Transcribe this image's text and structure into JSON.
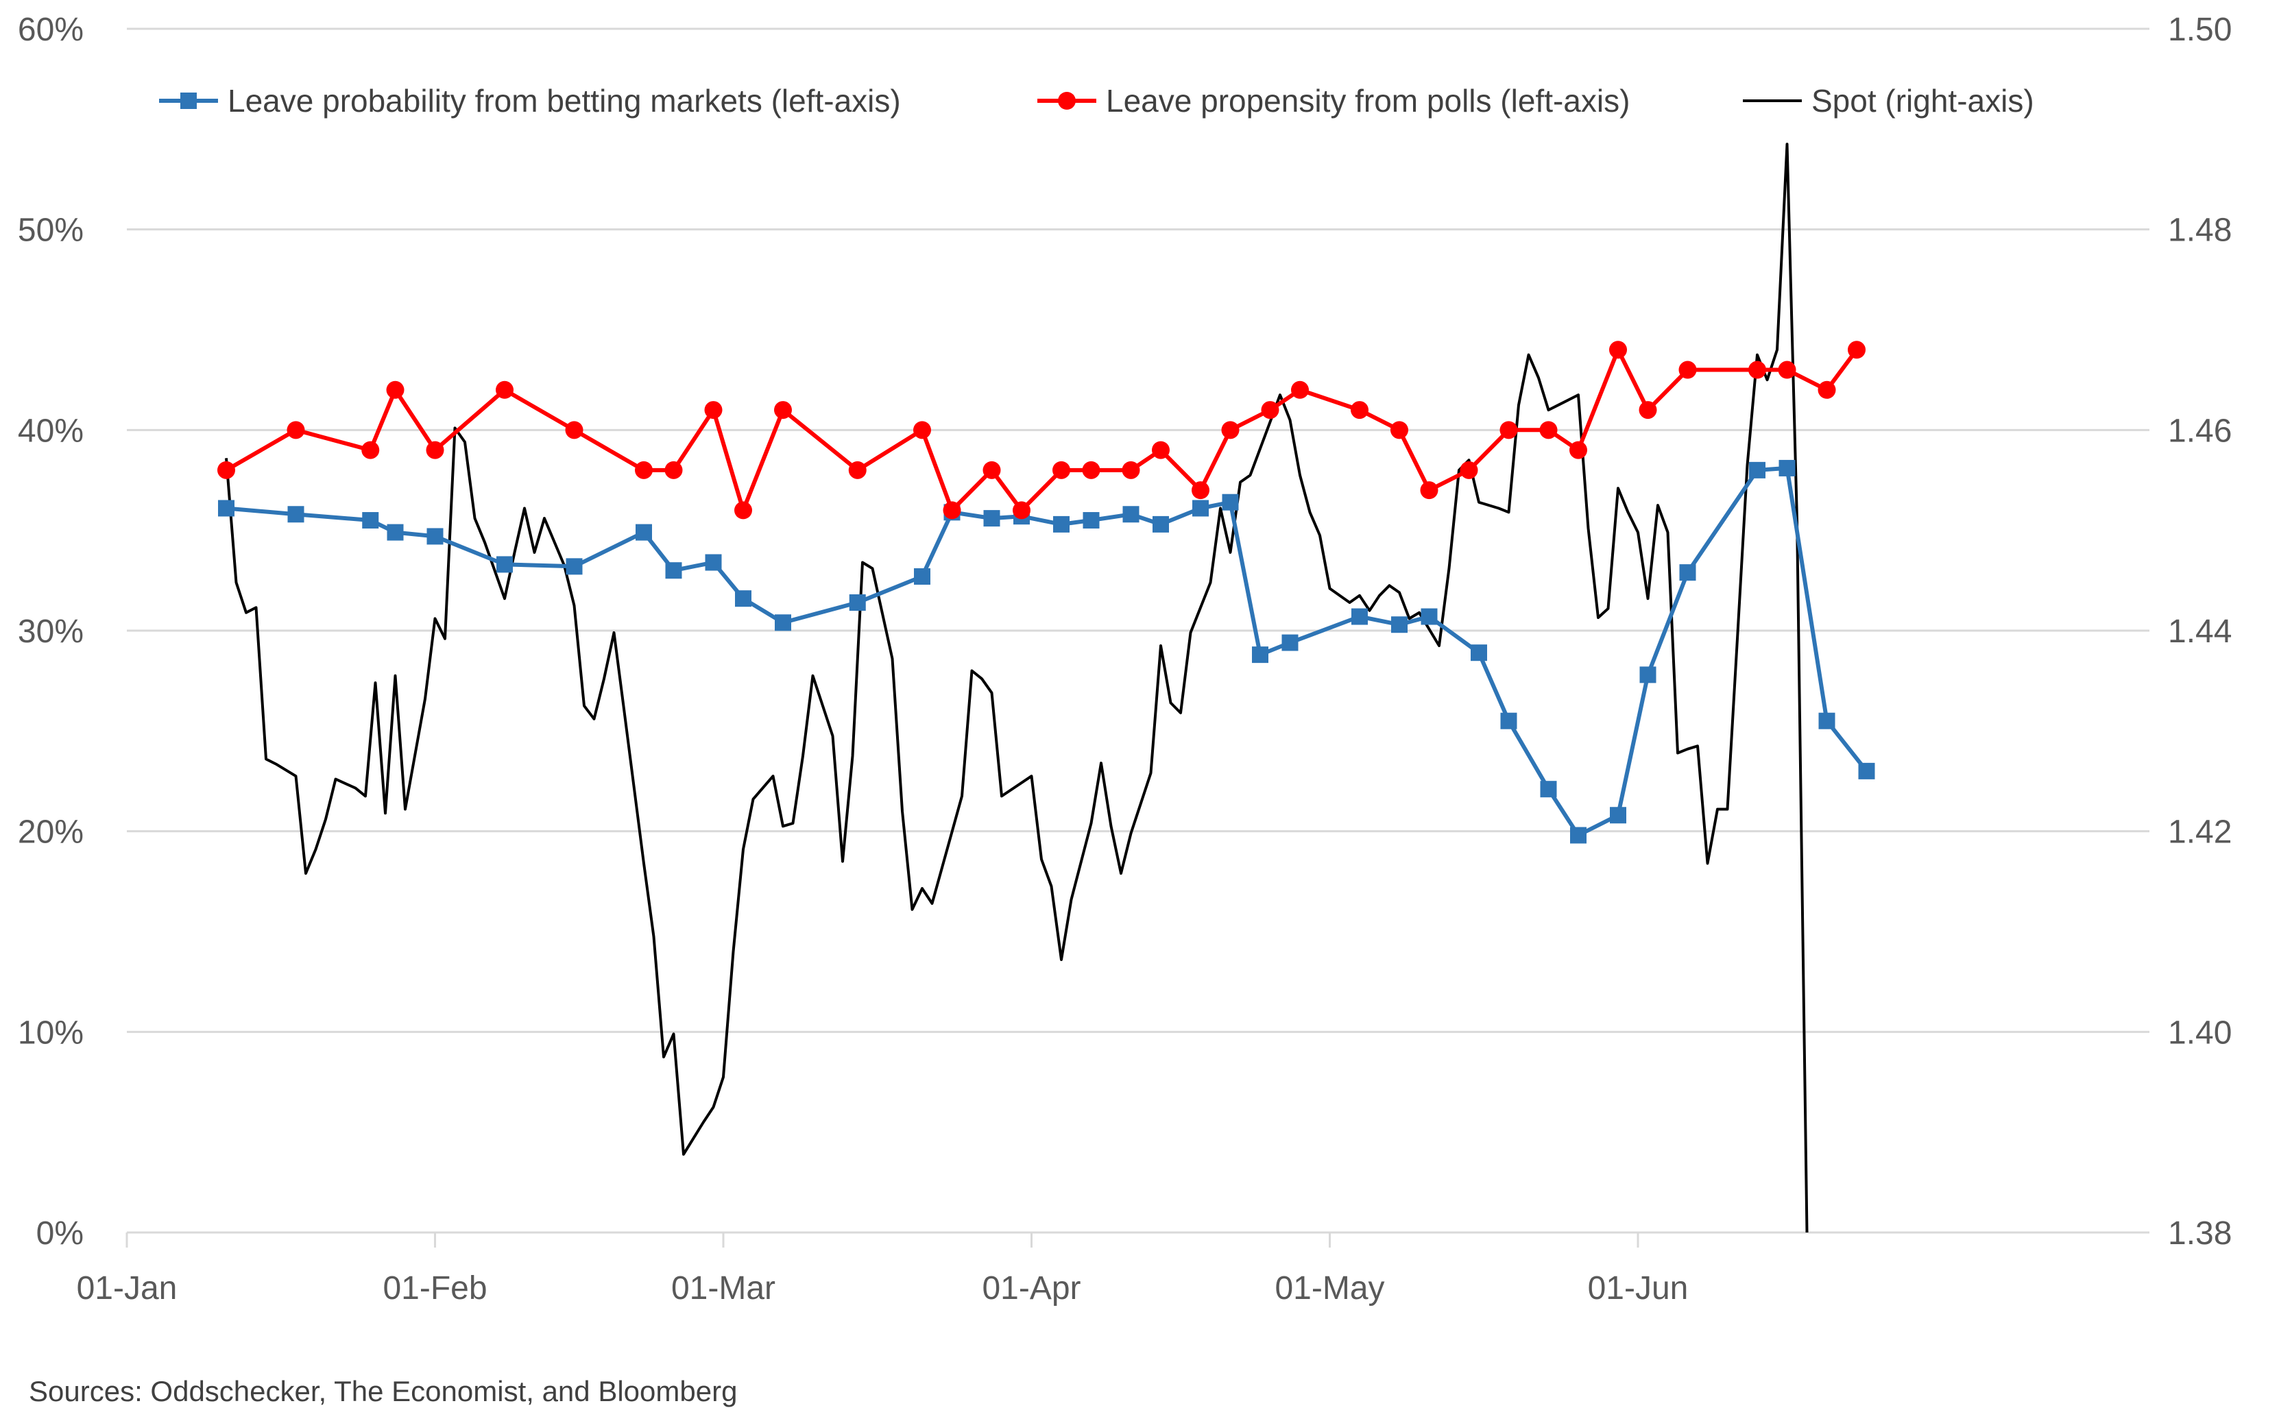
{
  "chart_data": {
    "type": "line",
    "title": "",
    "x_start": "2016-01-01",
    "x_end": "2016-06-24",
    "x_ticks": [
      {
        "day": 0,
        "label": "01-Jan"
      },
      {
        "day": 31,
        "label": "01-Feb"
      },
      {
        "day": 60,
        "label": "01-Mar"
      },
      {
        "day": 91,
        "label": "01-Apr"
      },
      {
        "day": 121,
        "label": "01-May"
      },
      {
        "day": 152,
        "label": "01-Jun"
      }
    ],
    "y_left": {
      "min": 0,
      "max": 60,
      "ticks": [
        "0%",
        "10%",
        "20%",
        "30%",
        "40%",
        "50%",
        "60%"
      ]
    },
    "y_right": {
      "min": 1.38,
      "max": 1.5,
      "ticks": [
        "1.38",
        "1.40",
        "1.42",
        "1.44",
        "1.46",
        "1.48",
        "1.50"
      ]
    },
    "legend_position": "top",
    "series": [
      {
        "name": "Leave probability from betting markets (left-axis)",
        "axis": "left",
        "color": "#2e75b6",
        "marker": "square",
        "points": [
          [
            10,
            36.1
          ],
          [
            17,
            35.8
          ],
          [
            24.5,
            35.5
          ],
          [
            27,
            34.9
          ],
          [
            31,
            34.7
          ],
          [
            38,
            33.3
          ],
          [
            45,
            33.2
          ],
          [
            52,
            34.9
          ],
          [
            55,
            33.0
          ],
          [
            59,
            33.4
          ],
          [
            62,
            31.6
          ],
          [
            66,
            30.4
          ],
          [
            73.5,
            31.4
          ],
          [
            80,
            32.7
          ],
          [
            83,
            35.9
          ],
          [
            87,
            35.6
          ],
          [
            90,
            35.7
          ],
          [
            94,
            35.3
          ],
          [
            97,
            35.5
          ],
          [
            101,
            35.8
          ],
          [
            104,
            35.3
          ],
          [
            108,
            36.1
          ],
          [
            111,
            36.4
          ],
          [
            114,
            28.8
          ],
          [
            117,
            29.4
          ],
          [
            124,
            30.7
          ],
          [
            128,
            30.3
          ],
          [
            131,
            30.7
          ],
          [
            136,
            28.9
          ],
          [
            139,
            25.5
          ],
          [
            143,
            22.1
          ],
          [
            146,
            19.8
          ],
          [
            150,
            20.8
          ],
          [
            153,
            27.8
          ],
          [
            157,
            32.9
          ],
          [
            164,
            38.0
          ],
          [
            167,
            38.1
          ],
          [
            171,
            25.5
          ],
          [
            175,
            23.0
          ]
        ]
      },
      {
        "name": "Leave propensity from polls (left-axis)",
        "axis": "left",
        "color": "#ff0000",
        "marker": "circle",
        "points": [
          [
            10,
            38
          ],
          [
            17,
            40
          ],
          [
            24.5,
            39
          ],
          [
            27,
            42
          ],
          [
            31,
            39
          ],
          [
            38,
            42
          ],
          [
            45,
            40
          ],
          [
            52,
            38
          ],
          [
            55,
            38
          ],
          [
            59,
            41
          ],
          [
            62,
            36
          ],
          [
            66,
            41
          ],
          [
            73.5,
            38
          ],
          [
            80,
            40
          ],
          [
            83,
            36
          ],
          [
            87,
            38
          ],
          [
            90,
            36
          ],
          [
            94,
            38
          ],
          [
            97,
            38
          ],
          [
            101,
            38
          ],
          [
            104,
            39
          ],
          [
            108,
            37
          ],
          [
            111,
            40
          ],
          [
            115,
            41
          ],
          [
            118,
            42
          ],
          [
            124,
            41
          ],
          [
            128,
            40
          ],
          [
            131,
            37
          ],
          [
            135,
            38
          ],
          [
            139,
            40
          ],
          [
            143,
            40
          ],
          [
            146,
            39
          ],
          [
            150,
            44
          ],
          [
            153,
            41
          ],
          [
            157,
            43
          ],
          [
            164,
            43
          ],
          [
            167,
            43
          ],
          [
            171,
            42
          ],
          [
            174,
            44
          ]
        ]
      },
      {
        "name": "Spot (right-axis)",
        "axis": "right",
        "color": "#000000",
        "marker": "none",
        "points": [
          [
            10,
            1.4572
          ],
          [
            11,
            1.4448
          ],
          [
            12,
            1.4418
          ],
          [
            13,
            1.4423
          ],
          [
            14,
            1.4272
          ],
          [
            15,
            1.4267
          ],
          [
            17,
            1.4255
          ],
          [
            18,
            1.4158
          ],
          [
            19,
            1.4182
          ],
          [
            20,
            1.4212
          ],
          [
            21,
            1.4252
          ],
          [
            23,
            1.4243
          ],
          [
            24,
            1.4235
          ],
          [
            25,
            1.4348
          ],
          [
            26,
            1.4218
          ],
          [
            27,
            1.4355
          ],
          [
            28,
            1.4222
          ],
          [
            30,
            1.4332
          ],
          [
            31,
            1.4412
          ],
          [
            32,
            1.4392
          ],
          [
            33,
            1.4602
          ],
          [
            34,
            1.4588
          ],
          [
            35,
            1.4512
          ],
          [
            36,
            1.4488
          ],
          [
            38,
            1.4432
          ],
          [
            39,
            1.4478
          ],
          [
            40,
            1.4522
          ],
          [
            41,
            1.4478
          ],
          [
            42,
            1.4512
          ],
          [
            44,
            1.4465
          ],
          [
            45,
            1.4425
          ],
          [
            46,
            1.4325
          ],
          [
            47,
            1.4312
          ],
          [
            48,
            1.4352
          ],
          [
            49,
            1.4398
          ],
          [
            50,
            1.4322
          ],
          [
            52,
            1.4168
          ],
          [
            53,
            1.4095
          ],
          [
            54,
            1.3975
          ],
          [
            55,
            1.3998
          ],
          [
            56,
            1.3878
          ],
          [
            58,
            1.391
          ],
          [
            59,
            1.3925
          ],
          [
            60,
            1.3955
          ],
          [
            61,
            1.408
          ],
          [
            62,
            1.4182
          ],
          [
            63,
            1.4232
          ],
          [
            65,
            1.4255
          ],
          [
            66,
            1.4205
          ],
          [
            67,
            1.4208
          ],
          [
            68,
            1.4275
          ],
          [
            69,
            1.4355
          ],
          [
            71,
            1.4295
          ],
          [
            72,
            1.417
          ],
          [
            73,
            1.4275
          ],
          [
            74,
            1.4468
          ],
          [
            75,
            1.4462
          ],
          [
            77,
            1.4372
          ],
          [
            78,
            1.422
          ],
          [
            79,
            1.4122
          ],
          [
            80,
            1.4143
          ],
          [
            81,
            1.4128
          ],
          [
            84,
            1.4235
          ],
          [
            85,
            1.436
          ],
          [
            86,
            1.4352
          ],
          [
            87,
            1.4338
          ],
          [
            88,
            1.4235
          ],
          [
            91,
            1.4255
          ],
          [
            92,
            1.4172
          ],
          [
            93,
            1.4145
          ],
          [
            94,
            1.4072
          ],
          [
            95,
            1.4132
          ],
          [
            97,
            1.4208
          ],
          [
            98,
            1.4268
          ],
          [
            99,
            1.4205
          ],
          [
            100,
            1.4158
          ],
          [
            101,
            1.4198
          ],
          [
            103,
            1.4258
          ],
          [
            104,
            1.4385
          ],
          [
            105,
            1.4328
          ],
          [
            106,
            1.4318
          ],
          [
            107,
            1.4398
          ],
          [
            109,
            1.4448
          ],
          [
            110,
            1.4522
          ],
          [
            111,
            1.4478
          ],
          [
            112,
            1.4548
          ],
          [
            113,
            1.4555
          ],
          [
            115,
            1.4608
          ],
          [
            116,
            1.4635
          ],
          [
            117,
            1.461
          ],
          [
            118,
            1.4555
          ],
          [
            119,
            1.4518
          ],
          [
            120,
            1.4495
          ],
          [
            121,
            1.4442
          ],
          [
            123,
            1.4428
          ],
          [
            124,
            1.4435
          ],
          [
            125,
            1.442
          ],
          [
            126,
            1.4435
          ],
          [
            127,
            1.4445
          ],
          [
            128,
            1.4438
          ],
          [
            129,
            1.4412
          ],
          [
            130,
            1.4418
          ],
          [
            132,
            1.4385
          ],
          [
            133,
            1.4462
          ],
          [
            134,
            1.456
          ],
          [
            135,
            1.457
          ],
          [
            136,
            1.4528
          ],
          [
            138,
            1.4522
          ],
          [
            139,
            1.4518
          ],
          [
            140,
            1.4625
          ],
          [
            141,
            1.4675
          ],
          [
            142,
            1.4652
          ],
          [
            143,
            1.462
          ],
          [
            144,
            1.4625
          ],
          [
            146,
            1.4635
          ],
          [
            147,
            1.4502
          ],
          [
            148,
            1.4413
          ],
          [
            149,
            1.4422
          ],
          [
            150,
            1.4542
          ],
          [
            151,
            1.4518
          ],
          [
            152,
            1.4498
          ],
          [
            153,
            1.4432
          ],
          [
            154,
            1.4525
          ],
          [
            155,
            1.4498
          ],
          [
            156,
            1.4278
          ],
          [
            157,
            1.4282
          ],
          [
            158,
            1.4285
          ],
          [
            159,
            1.4168
          ],
          [
            160,
            1.4222
          ],
          [
            161,
            1.4222
          ],
          [
            162,
            1.4392
          ],
          [
            163,
            1.4565
          ],
          [
            164,
            1.4675
          ],
          [
            165,
            1.465
          ],
          [
            166,
            1.468
          ],
          [
            167,
            1.4885
          ],
          [
            168,
            1.451
          ],
          [
            169,
            1.38
          ]
        ]
      }
    ]
  },
  "legend": [
    {
      "label": "Leave probability from betting markets (left-axis)",
      "color": "#2e75b6",
      "marker": "square"
    },
    {
      "label": "Leave propensity from polls (left-axis)",
      "color": "#ff0000",
      "marker": "circle"
    },
    {
      "label": "Spot (right-axis)",
      "color": "#000000",
      "marker": "none"
    }
  ],
  "source_note": "Sources: Oddschecker, The Economist, and Bloomberg"
}
